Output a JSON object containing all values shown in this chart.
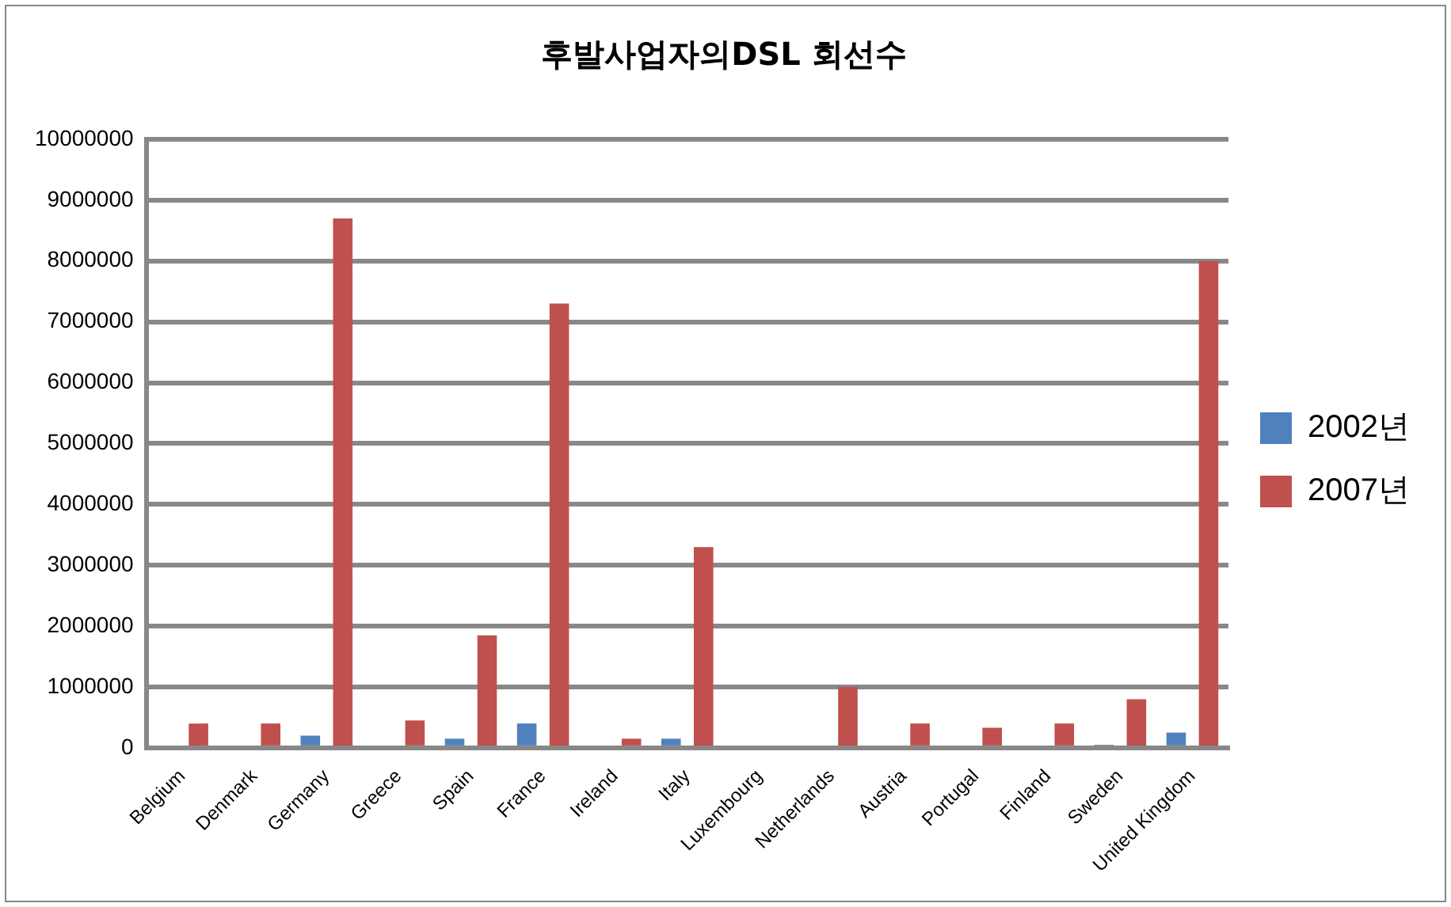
{
  "chart_data": {
    "type": "bar",
    "title": "후발사업자의DSL 회선수",
    "categories": [
      "Belgium",
      "Denmark",
      "Germany",
      "Greece",
      "Spain",
      "France",
      "Ireland",
      "Italy",
      "Luxembourg",
      "Netherlands",
      "Austria",
      "Portugal",
      "Finland",
      "Sweden",
      "United Kingdom"
    ],
    "series": [
      {
        "name": "2002년",
        "color": "#4f81bd",
        "values": [
          0,
          0,
          200000,
          0,
          150000,
          400000,
          0,
          150000,
          0,
          0,
          0,
          0,
          0,
          50000,
          250000
        ]
      },
      {
        "name": "2007년",
        "color": "#c0504d",
        "values": [
          400000,
          400000,
          8700000,
          450000,
          1850000,
          7300000,
          150000,
          3300000,
          0,
          1000000,
          400000,
          330000,
          400000,
          800000,
          8000000
        ]
      }
    ],
    "ylim": [
      0,
      10000000
    ],
    "yticks": [
      0,
      1000000,
      2000000,
      3000000,
      4000000,
      5000000,
      6000000,
      7000000,
      8000000,
      9000000,
      10000000
    ],
    "grid": "y",
    "legend": "right"
  }
}
